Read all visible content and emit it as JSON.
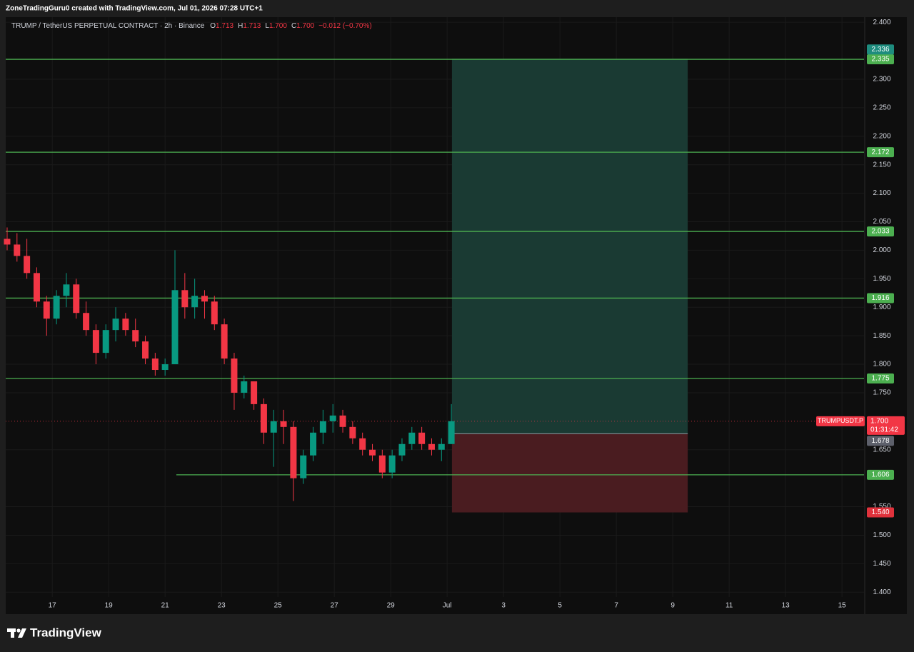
{
  "header": "ZoneTradingGuru0 created with TradingView.com, Jul 01, 2026 07:28 UTC+1",
  "footer": "TradingView",
  "chart_data": {
    "type": "candlestick",
    "legend": {
      "symbol": "TRUMP / TetherUS PERPETUAL CONTRACT · 2h · Binance",
      "ohlc": [
        {
          "key": "O",
          "value": "1.713"
        },
        {
          "key": "H",
          "value": "1.713"
        },
        {
          "key": "L",
          "value": "1.700"
        },
        {
          "key": "C",
          "value": "1.700"
        }
      ],
      "change": "−0.012 (−0.70%)"
    },
    "up_color": "#089981",
    "down_color": "#f23645",
    "x": [
      15.4,
      15.75,
      16.1,
      16.45,
      16.8,
      17.15,
      17.5,
      17.85,
      18.2,
      18.55,
      18.9,
      19.25,
      19.6,
      19.95,
      20.3,
      20.65,
      21.0,
      21.35,
      21.7,
      22.05,
      22.4,
      22.75,
      23.1,
      23.45,
      23.8,
      24.15,
      24.5,
      24.85,
      25.2,
      25.55,
      25.9,
      26.25,
      26.6,
      26.95,
      27.3,
      27.65,
      28.0,
      28.35,
      28.7,
      29.05,
      29.4,
      29.75,
      30.1,
      30.45,
      30.8,
      31.15
    ],
    "open": [
      2.02,
      2.01,
      1.99,
      1.96,
      1.91,
      1.88,
      1.92,
      1.94,
      1.89,
      1.86,
      1.82,
      1.86,
      1.88,
      1.86,
      1.84,
      1.81,
      1.79,
      1.8,
      1.93,
      1.9,
      1.92,
      1.91,
      1.87,
      1.81,
      1.75,
      1.77,
      1.73,
      1.68,
      1.7,
      1.69,
      1.6,
      1.64,
      1.68,
      1.7,
      1.71,
      1.69,
      1.67,
      1.65,
      1.64,
      1.61,
      1.64,
      1.66,
      1.68,
      1.66,
      1.65,
      1.66
    ],
    "high": [
      2.04,
      2.03,
      2.02,
      1.97,
      1.92,
      1.93,
      1.96,
      1.95,
      1.91,
      1.87,
      1.87,
      1.9,
      1.89,
      1.88,
      1.85,
      1.82,
      1.81,
      2.0,
      1.96,
      1.95,
      1.93,
      1.92,
      1.88,
      1.82,
      1.78,
      1.77,
      1.74,
      1.72,
      1.72,
      1.7,
      1.65,
      1.69,
      1.72,
      1.73,
      1.72,
      1.7,
      1.68,
      1.66,
      1.65,
      1.65,
      1.67,
      1.69,
      1.69,
      1.67,
      1.67,
      1.73
    ],
    "low": [
      2.0,
      1.98,
      1.95,
      1.9,
      1.85,
      1.87,
      1.9,
      1.88,
      1.85,
      1.8,
      1.81,
      1.84,
      1.85,
      1.83,
      1.8,
      1.78,
      1.78,
      1.8,
      1.88,
      1.88,
      1.88,
      1.86,
      1.8,
      1.72,
      1.74,
      1.72,
      1.66,
      1.62,
      1.66,
      1.56,
      1.59,
      1.63,
      1.66,
      1.68,
      1.68,
      1.66,
      1.64,
      1.63,
      1.6,
      1.6,
      1.63,
      1.65,
      1.65,
      1.64,
      1.63,
      1.66
    ],
    "close": [
      2.01,
      1.99,
      1.96,
      1.91,
      1.88,
      1.92,
      1.94,
      1.89,
      1.86,
      1.82,
      1.86,
      1.88,
      1.86,
      1.84,
      1.81,
      1.79,
      1.8,
      1.93,
      1.9,
      1.92,
      1.91,
      1.87,
      1.81,
      1.75,
      1.77,
      1.73,
      1.68,
      1.7,
      1.69,
      1.6,
      1.64,
      1.68,
      1.7,
      1.71,
      1.69,
      1.67,
      1.65,
      1.64,
      1.61,
      1.64,
      1.66,
      1.68,
      1.66,
      1.65,
      1.66,
      1.7
    ],
    "levels": [
      {
        "value": 2.335
      },
      {
        "value": 2.172
      },
      {
        "value": 2.033
      },
      {
        "value": 1.916
      },
      {
        "value": 1.775
      },
      {
        "value": 1.606,
        "from": 21.4
      }
    ],
    "level_color": "#4caf50",
    "position": {
      "from": 31.17,
      "to": 39.53,
      "entry": 1.678,
      "target": 2.336,
      "stop": {
        "value": 1.54,
        "label": "1.540"
      },
      "profit_color": "#1a3a33",
      "loss_color": "#4a1c20"
    },
    "last_price": {
      "symbol": "TRUMPUSDT.P",
      "value": 1.7,
      "label": "1.700",
      "countdown": "01:31:42"
    },
    "xlim": [
      15.35,
      45.78
    ],
    "ylim": [
      1.364,
      2.409
    ],
    "xticks": [
      17,
      19,
      21,
      23,
      25,
      27,
      29,
      {
        "value": 31,
        "label": "Jul"
      },
      {
        "value": 33,
        "label": "3"
      },
      {
        "value": 35,
        "label": "5"
      },
      {
        "value": 37,
        "label": "7"
      },
      {
        "value": 39,
        "label": "9"
      },
      {
        "value": 41,
        "label": "11"
      },
      {
        "value": 43,
        "label": "13"
      },
      {
        "value": 45,
        "label": "15"
      }
    ],
    "yticks": [
      {
        "value": 2.4,
        "label": "2.400"
      },
      {
        "value": 2.3,
        "label": "2.300"
      },
      {
        "value": 2.25,
        "label": "2.250"
      },
      {
        "value": 2.2,
        "label": "2.200"
      },
      {
        "value": 2.15,
        "label": "2.150"
      },
      {
        "value": 2.1,
        "label": "2.100"
      },
      {
        "value": 2.05,
        "label": "2.050"
      },
      {
        "value": 2.0,
        "label": "2.000"
      },
      {
        "value": 1.95,
        "label": "1.950"
      },
      {
        "value": 1.9,
        "label": "1.900"
      },
      {
        "value": 1.85,
        "label": "1.850"
      },
      {
        "value": 1.8,
        "label": "1.800"
      },
      {
        "value": 1.75,
        "label": "1.750"
      },
      {
        "value": 1.65,
        "label": "1.650"
      },
      {
        "value": 1.55,
        "label": "1.550"
      },
      {
        "value": 1.5,
        "label": "1.500"
      },
      {
        "value": 1.45,
        "label": "1.450"
      },
      {
        "value": 1.4,
        "label": "1.400"
      }
    ],
    "grid": true
  }
}
